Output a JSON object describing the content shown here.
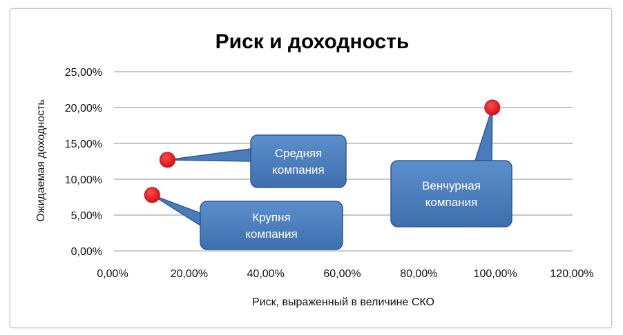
{
  "chart_data": {
    "type": "scatter",
    "title": "Риск и доходность",
    "xlabel": "Риск, выраженный в величине СКО",
    "ylabel": "Ожидаемая доходность",
    "xlim": [
      0,
      1.2
    ],
    "ylim": [
      0,
      0.25
    ],
    "x_ticks": [
      "0,00%",
      "20,00%",
      "40,00%",
      "60,00%",
      "80,00%",
      "100,00%",
      "120,00%"
    ],
    "y_ticks": [
      "0,00%",
      "5,00%",
      "10,00%",
      "15,00%",
      "20,00%",
      "25,00%"
    ],
    "grid": "horizontal",
    "point_color": "#e8141a",
    "callout_color": "#4f81bd",
    "points": [
      {
        "x": 0.14,
        "y": 0.127,
        "label": [
          "Средняя",
          "компания"
        ]
      },
      {
        "x": 0.1,
        "y": 0.078,
        "label": [
          "Крупня",
          "компания"
        ]
      },
      {
        "x": 0.99,
        "y": 0.2,
        "label": [
          "Венчурная",
          "компания"
        ]
      }
    ]
  }
}
